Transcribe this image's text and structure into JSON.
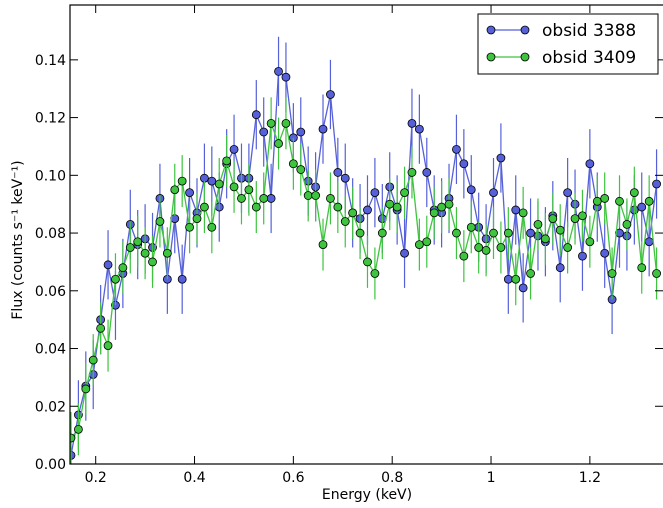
{
  "chart_data": {
    "type": "line",
    "x_label": "Energy (keV)",
    "y_label": "Flux (counts s⁻¹ keV⁻¹)",
    "x": [
      0.15,
      0.165,
      0.18,
      0.195,
      0.21,
      0.225,
      0.24,
      0.255,
      0.27,
      0.285,
      0.3,
      0.315,
      0.33,
      0.345,
      0.36,
      0.375,
      0.39,
      0.405,
      0.42,
      0.435,
      0.45,
      0.465,
      0.48,
      0.495,
      0.51,
      0.525,
      0.54,
      0.555,
      0.57,
      0.585,
      0.6,
      0.615,
      0.63,
      0.645,
      0.66,
      0.675,
      0.69,
      0.705,
      0.72,
      0.735,
      0.75,
      0.765,
      0.78,
      0.795,
      0.81,
      0.825,
      0.84,
      0.855,
      0.87,
      0.885,
      0.9,
      0.915,
      0.93,
      0.945,
      0.96,
      0.975,
      0.99,
      1.005,
      1.02,
      1.035,
      1.05,
      1.065,
      1.08,
      1.095,
      1.11,
      1.125,
      1.14,
      1.155,
      1.17,
      1.185,
      1.2,
      1.215,
      1.23,
      1.245,
      1.26,
      1.275,
      1.29,
      1.305,
      1.32,
      1.335
    ],
    "series": [
      {
        "name": "obsid 3388",
        "color": "#5560d9",
        "error": 0.012,
        "values": [
          0.003,
          0.017,
          0.027,
          0.031,
          0.05,
          0.069,
          0.055,
          0.066,
          0.083,
          0.076,
          0.078,
          0.075,
          0.092,
          0.064,
          0.085,
          0.064,
          0.094,
          0.087,
          0.099,
          0.098,
          0.089,
          0.104,
          0.109,
          0.099,
          0.099,
          0.121,
          0.115,
          0.092,
          0.136,
          0.134,
          0.113,
          0.115,
          0.098,
          0.096,
          0.116,
          0.128,
          0.101,
          0.099,
          0.087,
          0.085,
          0.088,
          0.094,
          0.085,
          0.096,
          0.088,
          0.073,
          0.118,
          0.116,
          0.101,
          0.088,
          0.087,
          0.092,
          0.109,
          0.104,
          0.095,
          0.082,
          0.078,
          0.094,
          0.106,
          0.064,
          0.088,
          0.061,
          0.08,
          0.079,
          0.077,
          0.086,
          0.068,
          0.094,
          0.09,
          0.072,
          0.104,
          0.089,
          0.073,
          0.057,
          0.08,
          0.079,
          0.088,
          0.089,
          0.077,
          0.097
        ]
      },
      {
        "name": "obsid 3409",
        "color": "#3ec43e",
        "error": 0.009,
        "values": [
          0.009,
          0.012,
          0.026,
          0.036,
          0.047,
          0.041,
          0.064,
          0.068,
          0.075,
          0.077,
          0.073,
          0.07,
          0.084,
          0.073,
          0.095,
          0.098,
          0.082,
          0.085,
          0.089,
          0.082,
          0.097,
          0.105,
          0.096,
          0.092,
          0.095,
          0.089,
          0.092,
          0.118,
          0.111,
          0.118,
          0.104,
          0.102,
          0.093,
          0.093,
          0.076,
          0.092,
          0.089,
          0.084,
          0.087,
          0.08,
          0.07,
          0.066,
          0.08,
          0.09,
          0.089,
          0.094,
          0.101,
          0.076,
          0.077,
          0.087,
          0.089,
          0.09,
          0.08,
          0.072,
          0.082,
          0.075,
          0.074,
          0.08,
          0.075,
          0.08,
          0.064,
          0.087,
          0.066,
          0.083,
          0.078,
          0.085,
          0.081,
          0.075,
          0.085,
          0.086,
          0.077,
          0.091,
          0.092,
          0.066,
          0.091,
          0.083,
          0.094,
          0.068,
          0.091,
          0.066
        ]
      }
    ],
    "xlim": [
      0.148,
      1.348
    ],
    "ylim": [
      0,
      0.159
    ],
    "xticks": [
      0.2,
      0.4,
      0.6,
      0.8,
      1.0,
      1.2
    ],
    "yticks": [
      {
        "value": 0,
        "label": "0.00"
      },
      {
        "value": 0.02,
        "label": "0.02"
      },
      {
        "value": 0.04,
        "label": "0.04"
      },
      {
        "value": 0.06,
        "label": "0.06"
      },
      {
        "value": 0.08,
        "label": "0.08"
      },
      {
        "value": 0.1,
        "label": "0.10"
      },
      {
        "value": 0.12,
        "label": "0.12"
      },
      {
        "value": 0.14,
        "label": "0.14"
      }
    ],
    "legend": "upper right"
  }
}
